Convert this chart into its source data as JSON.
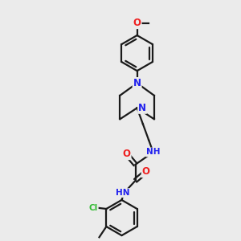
{
  "bg_color": "#ebebeb",
  "bond_color": "#1a1a1a",
  "bond_width": 1.6,
  "atom_colors": {
    "N": "#2020ee",
    "O": "#ee2020",
    "Cl": "#33bb33",
    "C": "#1a1a1a"
  },
  "font_size": 7.5,
  "fig_size": [
    3.0,
    3.0
  ],
  "dpi": 100
}
